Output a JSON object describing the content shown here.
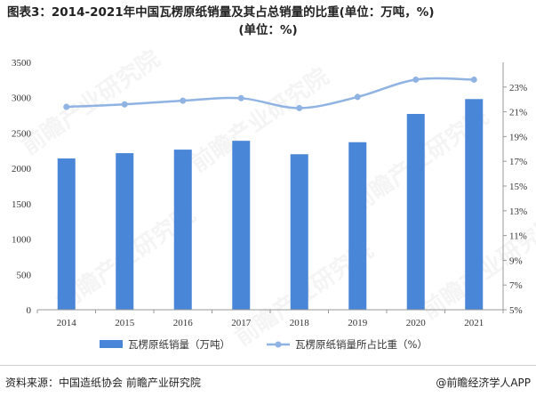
{
  "title": {
    "line1": "图表3：2014-2021年中国瓦楞原纸销量及其占总销量的比重(单位：万吨，%)",
    "line2": "(单位：%)"
  },
  "footer": {
    "source": "资料来源：中国造纸协会 前瞻产业研究院",
    "brand": "@前瞻经济学人APP"
  },
  "watermark": "前瞻产业研究院",
  "colors": {
    "bar": "#4a86d8",
    "line": "#8fb3e3"
  },
  "chart_data": {
    "type": "bar",
    "categories": [
      "2014",
      "2015",
      "2016",
      "2017",
      "2018",
      "2019",
      "2020",
      "2021"
    ],
    "series": [
      {
        "name": "瓦楞原纸销量（万吨）",
        "type": "bar",
        "axis": "left",
        "values": [
          2140,
          2215,
          2265,
          2390,
          2200,
          2370,
          2770,
          2980
        ]
      },
      {
        "name": "瓦楞原纸销量所占比重（%）",
        "type": "line",
        "axis": "right",
        "values": [
          21.4,
          21.6,
          21.9,
          22.1,
          21.3,
          22.2,
          23.6,
          23.6
        ]
      }
    ],
    "y_left": {
      "min": 0,
      "max": 3500,
      "step": 500,
      "ticks": [
        "0",
        "500",
        "1000",
        "1500",
        "2000",
        "2500",
        "3000",
        "3500"
      ]
    },
    "y_right": {
      "min": 5,
      "max": 25,
      "step": 2,
      "ticks": [
        "5%",
        "7%",
        "9%",
        "11%",
        "13%",
        "15%",
        "17%",
        "19%",
        "21%",
        "23%"
      ]
    },
    "grid": false,
    "legend": "bottom"
  }
}
